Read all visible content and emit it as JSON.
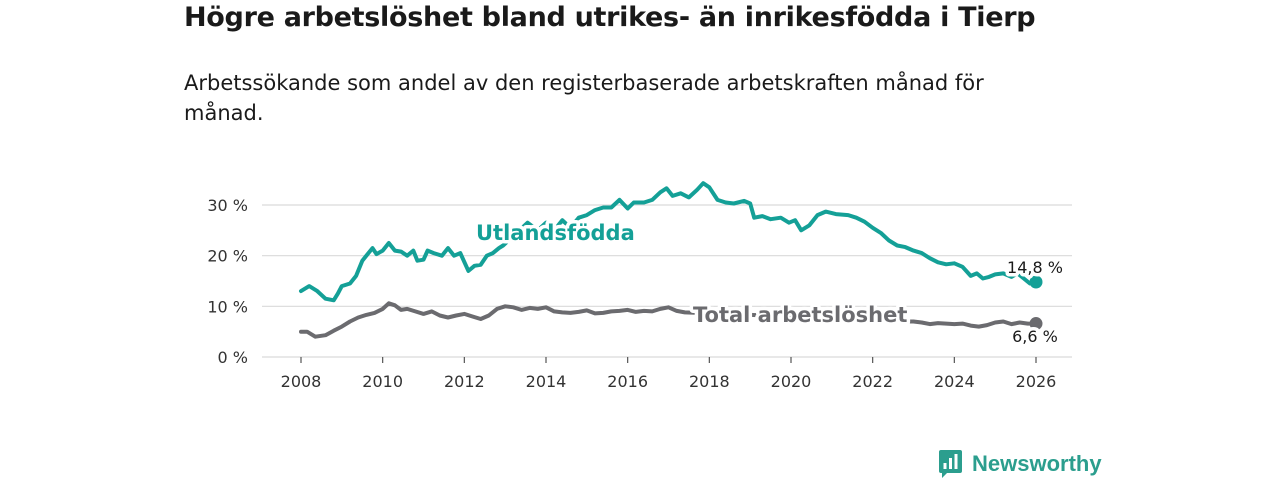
{
  "title": "Högre arbetslöshet bland utrikes- än inrikesfödda i Tierp",
  "subtitle": "Arbetssökande som andel av den registerbaserade arbetskraften månad för månad.",
  "brand": {
    "name": "Newsworthy",
    "icon": "newsworthy-logo-icon"
  },
  "colors": {
    "utlandsfodda": "#14a097",
    "total": "#6b6b6f",
    "grid": "#d9d9d9"
  },
  "chart_data": {
    "type": "line",
    "title": "Högre arbetslöshet bland utrikes- än inrikesfödda i Tierp",
    "xlabel": "",
    "ylabel": "",
    "xlim": [
      2007.3,
      2026.8
    ],
    "ylim": [
      0,
      30
    ],
    "x_ticks": [
      2008,
      2010,
      2012,
      2014,
      2016,
      2018,
      2020,
      2022,
      2024,
      2026
    ],
    "x_tick_labels": [
      "2008",
      "2010",
      "2012",
      "2014",
      "2016",
      "2018",
      "2020",
      "2022",
      "2024",
      "2026"
    ],
    "y_ticks": [
      0,
      10,
      20,
      30
    ],
    "y_tick_labels": [
      "0 %",
      "10 %",
      "20 %",
      "30 %"
    ],
    "grid": true,
    "series": [
      {
        "name": "Utlandsfödda",
        "label": "Utlandsfödda",
        "last_label": "14,8 %",
        "points": [
          [
            2008.0,
            13.0
          ],
          [
            2008.2,
            14.0
          ],
          [
            2008.4,
            13.0
          ],
          [
            2008.6,
            11.5
          ],
          [
            2008.8,
            11.2
          ],
          [
            2008.9,
            12.5
          ],
          [
            2009.0,
            14.0
          ],
          [
            2009.2,
            14.5
          ],
          [
            2009.35,
            16.0
          ],
          [
            2009.5,
            19.0
          ],
          [
            2009.6,
            20.0
          ],
          [
            2009.75,
            21.5
          ],
          [
            2009.85,
            20.3
          ],
          [
            2010.0,
            21.0
          ],
          [
            2010.15,
            22.5
          ],
          [
            2010.3,
            21.0
          ],
          [
            2010.45,
            20.8
          ],
          [
            2010.6,
            20.0
          ],
          [
            2010.75,
            21.0
          ],
          [
            2010.85,
            19.0
          ],
          [
            2011.0,
            19.2
          ],
          [
            2011.1,
            21.0
          ],
          [
            2011.25,
            20.5
          ],
          [
            2011.45,
            20.0
          ],
          [
            2011.6,
            21.5
          ],
          [
            2011.75,
            20.0
          ],
          [
            2011.9,
            20.5
          ],
          [
            2012.1,
            17.0
          ],
          [
            2012.25,
            18.0
          ],
          [
            2012.4,
            18.2
          ],
          [
            2012.55,
            20.0
          ],
          [
            2012.7,
            20.5
          ],
          [
            2012.85,
            21.5
          ],
          [
            2012.95,
            22.0
          ],
          [
            2013.55,
            26.5
          ],
          [
            2013.8,
            25.0
          ],
          [
            2014.0,
            26.5
          ],
          [
            2014.2,
            25.0
          ],
          [
            2014.4,
            27.0
          ],
          [
            2014.6,
            25.5
          ],
          [
            2014.8,
            27.5
          ],
          [
            2015.0,
            28.0
          ],
          [
            2015.2,
            29.0
          ],
          [
            2015.4,
            29.5
          ],
          [
            2015.6,
            29.5
          ],
          [
            2015.8,
            31.0
          ],
          [
            2016.0,
            29.3
          ],
          [
            2016.15,
            30.5
          ],
          [
            2016.4,
            30.5
          ],
          [
            2016.6,
            31.0
          ],
          [
            2016.8,
            32.5
          ],
          [
            2016.95,
            33.3
          ],
          [
            2017.1,
            31.8
          ],
          [
            2017.3,
            32.3
          ],
          [
            2017.5,
            31.5
          ],
          [
            2017.7,
            33.0
          ],
          [
            2017.85,
            34.3
          ],
          [
            2018.0,
            33.5
          ],
          [
            2018.2,
            31.0
          ],
          [
            2018.4,
            30.5
          ],
          [
            2018.6,
            30.3
          ],
          [
            2018.85,
            30.8
          ],
          [
            2019.0,
            30.3
          ],
          [
            2019.1,
            27.5
          ],
          [
            2019.3,
            27.8
          ],
          [
            2019.5,
            27.2
          ],
          [
            2019.75,
            27.5
          ],
          [
            2019.95,
            26.5
          ],
          [
            2020.1,
            27.0
          ],
          [
            2020.25,
            25.0
          ],
          [
            2020.45,
            26.0
          ],
          [
            2020.65,
            28.0
          ],
          [
            2020.85,
            28.7
          ],
          [
            2021.1,
            28.2
          ],
          [
            2021.4,
            28.0
          ],
          [
            2021.6,
            27.5
          ],
          [
            2021.8,
            26.7
          ],
          [
            2022.0,
            25.5
          ],
          [
            2022.2,
            24.5
          ],
          [
            2022.4,
            23.0
          ],
          [
            2022.6,
            22.0
          ],
          [
            2022.8,
            21.7
          ],
          [
            2023.0,
            21.0
          ],
          [
            2023.2,
            20.5
          ],
          [
            2023.4,
            19.5
          ],
          [
            2023.6,
            18.7
          ],
          [
            2023.8,
            18.3
          ],
          [
            2024.0,
            18.5
          ],
          [
            2024.2,
            17.8
          ],
          [
            2024.4,
            16.0
          ],
          [
            2024.55,
            16.5
          ],
          [
            2024.7,
            15.5
          ],
          [
            2024.85,
            15.8
          ],
          [
            2025.0,
            16.3
          ],
          [
            2025.2,
            16.5
          ],
          [
            2025.4,
            15.8
          ],
          [
            2025.55,
            16.5
          ],
          [
            2025.7,
            15.5
          ],
          [
            2025.85,
            14.5
          ],
          [
            2026.0,
            14.8
          ]
        ]
      },
      {
        "name": "Total arbetslöshet",
        "label": "Total arbetslöshet",
        "last_label": "6,6 %",
        "points": [
          [
            2008.0,
            5.0
          ],
          [
            2008.15,
            5.0
          ],
          [
            2008.35,
            4.0
          ],
          [
            2008.6,
            4.3
          ],
          [
            2008.8,
            5.2
          ],
          [
            2009.0,
            6.0
          ],
          [
            2009.2,
            7.0
          ],
          [
            2009.4,
            7.8
          ],
          [
            2009.6,
            8.3
          ],
          [
            2009.8,
            8.7
          ],
          [
            2010.0,
            9.5
          ],
          [
            2010.15,
            10.6
          ],
          [
            2010.3,
            10.2
          ],
          [
            2010.45,
            9.3
          ],
          [
            2010.6,
            9.5
          ],
          [
            2010.8,
            9.0
          ],
          [
            2011.0,
            8.5
          ],
          [
            2011.2,
            9.0
          ],
          [
            2011.4,
            8.2
          ],
          [
            2011.6,
            7.8
          ],
          [
            2011.8,
            8.2
          ],
          [
            2012.0,
            8.5
          ],
          [
            2012.2,
            8.0
          ],
          [
            2012.4,
            7.5
          ],
          [
            2012.6,
            8.2
          ],
          [
            2012.8,
            9.5
          ],
          [
            2013.0,
            10.0
          ],
          [
            2013.2,
            9.8
          ],
          [
            2013.4,
            9.3
          ],
          [
            2013.6,
            9.7
          ],
          [
            2013.8,
            9.5
          ],
          [
            2014.0,
            9.8
          ],
          [
            2014.2,
            9.0
          ],
          [
            2014.4,
            8.8
          ],
          [
            2014.6,
            8.7
          ],
          [
            2014.8,
            8.9
          ],
          [
            2015.0,
            9.2
          ],
          [
            2015.2,
            8.6
          ],
          [
            2015.4,
            8.7
          ],
          [
            2015.6,
            9.0
          ],
          [
            2015.8,
            9.1
          ],
          [
            2016.0,
            9.3
          ],
          [
            2016.2,
            8.9
          ],
          [
            2016.4,
            9.1
          ],
          [
            2016.6,
            9.0
          ],
          [
            2016.8,
            9.5
          ],
          [
            2017.0,
            9.8
          ],
          [
            2017.2,
            9.1
          ],
          [
            2017.4,
            8.8
          ],
          [
            2022.6,
            7.2
          ],
          [
            2022.8,
            7.0
          ],
          [
            2023.0,
            7.0
          ],
          [
            2023.2,
            6.8
          ],
          [
            2023.4,
            6.5
          ],
          [
            2023.6,
            6.7
          ],
          [
            2023.8,
            6.6
          ],
          [
            2024.0,
            6.5
          ],
          [
            2024.2,
            6.6
          ],
          [
            2024.4,
            6.2
          ],
          [
            2024.6,
            6.0
          ],
          [
            2024.8,
            6.3
          ],
          [
            2025.0,
            6.8
          ],
          [
            2025.2,
            7.0
          ],
          [
            2025.4,
            6.5
          ],
          [
            2025.6,
            6.8
          ],
          [
            2025.8,
            6.6
          ],
          [
            2026.0,
            6.6
          ]
        ]
      }
    ]
  }
}
